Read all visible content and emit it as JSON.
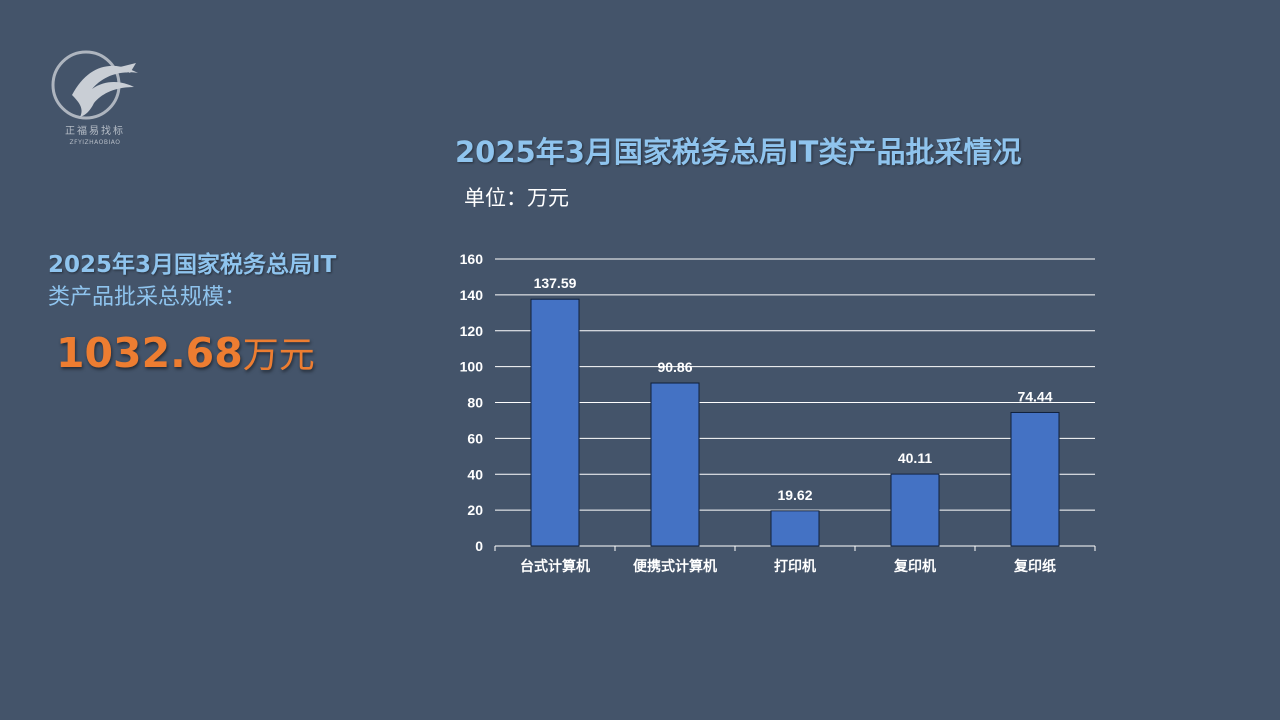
{
  "logo": {
    "text": "正福易找标",
    "sub": "ZFYIZHAOBIAO"
  },
  "summary": {
    "title_line1": "2025年3月国家税务总局IT",
    "title_line2": "类产品批采总规模：",
    "total_value": "1032.68",
    "total_unit": "万元"
  },
  "colors": {
    "background": "#44546a",
    "bar": "#4472c4",
    "accent": "#ed7d31",
    "title": "#8fc4ee"
  },
  "chart_data": {
    "type": "bar",
    "title": "2025年3月国家税务总局IT类产品批采情况",
    "unit_label": "单位：万元",
    "categories": [
      "台式计算机",
      "便携式计算机",
      "打印机",
      "复印机",
      "复印纸"
    ],
    "values": [
      137.59,
      90.86,
      19.62,
      40.11,
      74.44
    ],
    "value_labels": [
      "137.59",
      "90.86",
      "19.62",
      "40.11",
      "74.44"
    ],
    "ylim": [
      0,
      160
    ],
    "yticks": [
      0,
      20,
      40,
      60,
      80,
      100,
      120,
      140,
      160
    ],
    "grid": true,
    "xlabel": "",
    "ylabel": ""
  }
}
